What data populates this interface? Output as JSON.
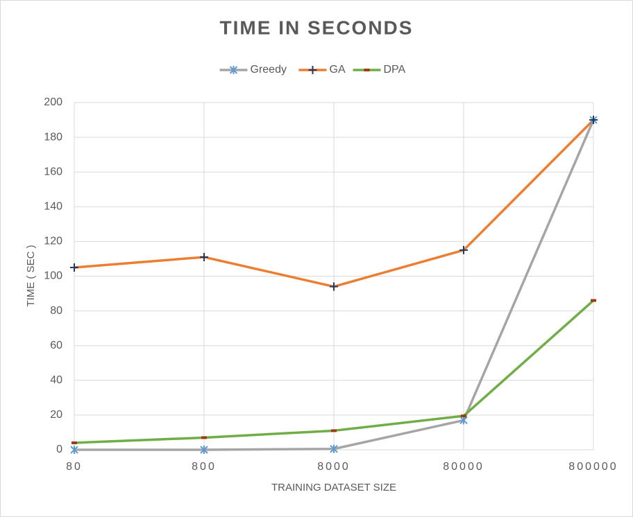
{
  "chart_data": {
    "type": "line",
    "title": "TIME IN SECONDS",
    "x_label": "TRAINING DATASET SIZE",
    "y_label": "TIME ( SEC )",
    "categories": [
      "80",
      "800",
      "8000",
      "80000",
      "800000"
    ],
    "series": [
      {
        "name": "Greedy",
        "color": "#a5a5a5",
        "marker": "asterisk",
        "marker_color": "#5b9bd5",
        "values": [
          0,
          0,
          0.5,
          17,
          190
        ]
      },
      {
        "name": "GA",
        "color": "#ed7d31",
        "marker": "plus",
        "marker_color": "#1f3864",
        "values": [
          105,
          111,
          94,
          115,
          190
        ]
      },
      {
        "name": "DPA",
        "color": "#70ad47",
        "marker": "dash",
        "marker_color": "#9e3b13",
        "values": [
          4,
          7,
          11,
          19.5,
          86
        ]
      }
    ],
    "ylim": [
      0,
      200
    ],
    "yticks": [
      0,
      20,
      40,
      60,
      80,
      100,
      120,
      140,
      160,
      180,
      200
    ],
    "grid": true,
    "legend": "top"
  }
}
